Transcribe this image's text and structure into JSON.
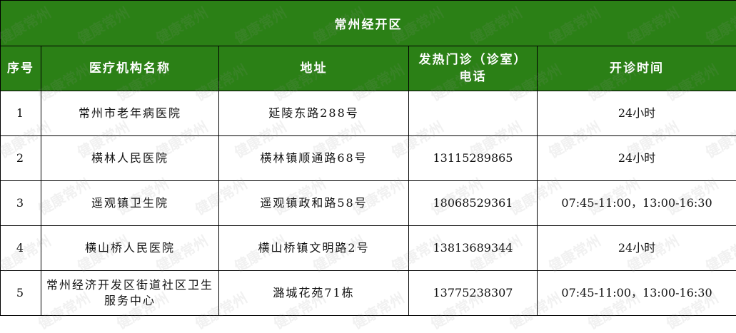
{
  "title": "常州经开区",
  "headers": [
    "序号",
    "医疗机构名称",
    "地址",
    "发热门诊（诊室）电话",
    "开诊时间"
  ],
  "rows": [
    {
      "no": "1",
      "name": "常州市老年病医院",
      "address": "延陵东路288号",
      "phone": "",
      "hours": "24小时"
    },
    {
      "no": "2",
      "name": "横林人民医院",
      "address": "横林镇顺通路68号",
      "phone": "13115289865",
      "hours": "24小时"
    },
    {
      "no": "3",
      "name": "遥观镇卫生院",
      "address": "遥观镇政和路58号",
      "phone": "18068529361",
      "hours": "07:45-11:00，13:00-16:30"
    },
    {
      "no": "4",
      "name": "横山桥人民医院",
      "address": "横山桥镇文明路2号",
      "phone": "13813689344",
      "hours": "24小时"
    },
    {
      "no": "5",
      "name": "常州经济开发区街道社区卫生服务中心",
      "address": "潞城花苑71栋",
      "phone": "13775238307",
      "hours": "07:45-11:00，13:00-16:30"
    }
  ],
  "watermark": "健康常州",
  "colors": {
    "header_bg": "#2b8016",
    "header_text": "#ffffff",
    "border": "#000000"
  }
}
